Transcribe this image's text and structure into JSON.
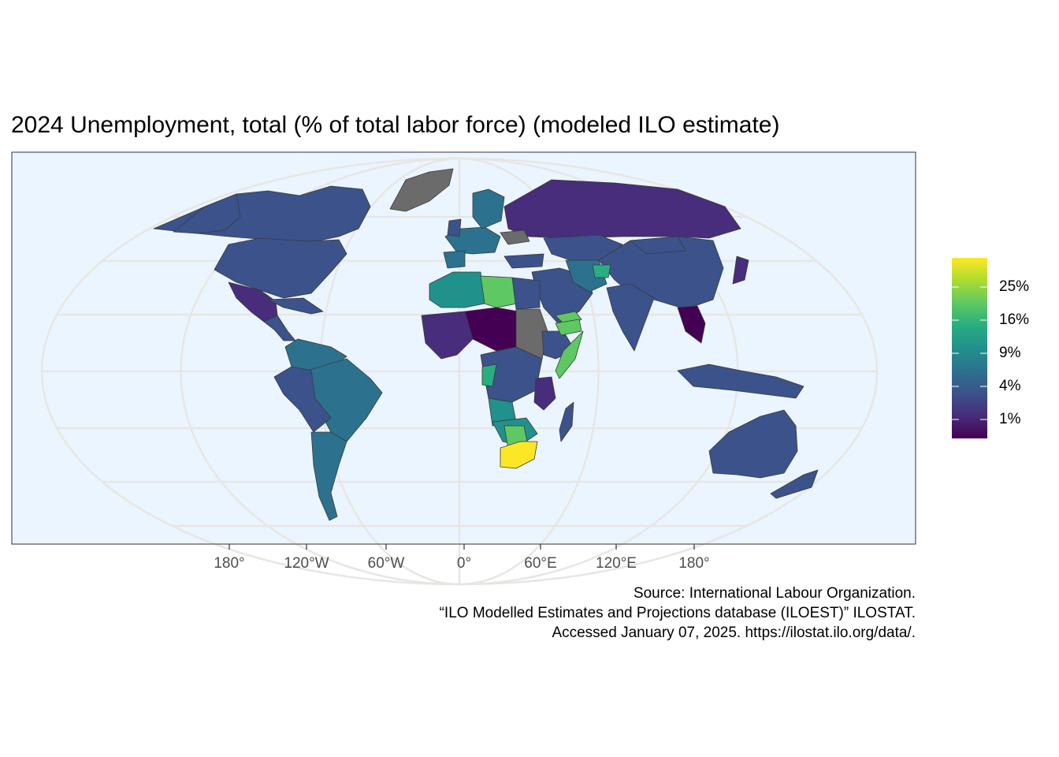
{
  "title": "2024 Unemployment, total (% of total labor force) (modeled ILO estimate)",
  "colors": {
    "ocean": "#ebf5ff",
    "graticule": "#e8e6e3",
    "no_data": "#6b6b6b",
    "country_border": "#3a3a3a",
    "panel_border": "#333333",
    "colorbar": [
      "#440154",
      "#472d7b",
      "#3b528b",
      "#2c728e",
      "#21918c",
      "#28ae80",
      "#5ec962",
      "#addc30",
      "#fde725"
    ]
  },
  "map": {
    "projection": "Robinson",
    "x_ticks": [
      "180°",
      "120°W",
      "60°W",
      "0°",
      "60°E",
      "120°E",
      "180°"
    ]
  },
  "legend": {
    "scale": "sqrt",
    "labels": [
      "25%",
      "16%",
      "9%",
      "4%",
      "1%"
    ]
  },
  "caption": {
    "line1": "Source: International Labour Organization.",
    "line2": "“ILO Modelled Estimates and Projections database (ILOEST)” ILOSTAT.",
    "line3": "Accessed January 07, 2025. https://ilostat.ilo.org/data/."
  }
}
